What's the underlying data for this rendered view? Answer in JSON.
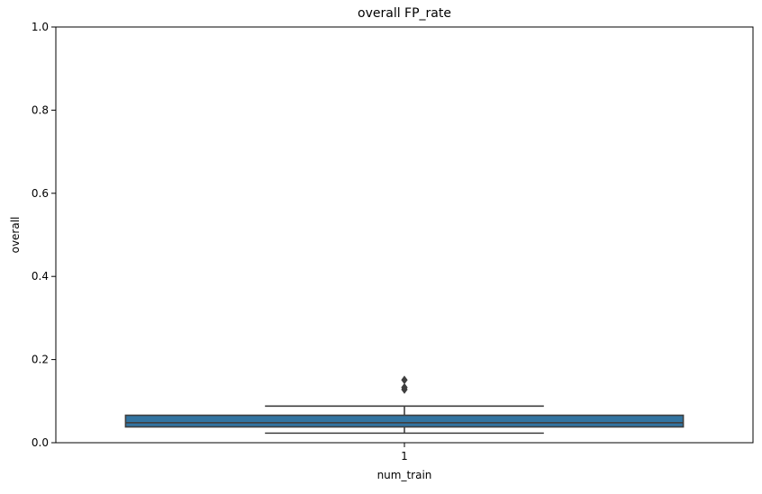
{
  "chart_data": {
    "type": "box",
    "title": "overall FP_rate",
    "xlabel": "num_train",
    "ylabel": "overall",
    "categories": [
      "1"
    ],
    "ylim": [
      0,
      1
    ],
    "yticks": [
      "0.0",
      "0.2",
      "0.4",
      "0.6",
      "0.8",
      "1.0"
    ],
    "ytick_values": [
      0.0,
      0.2,
      0.4,
      0.6,
      0.8,
      1.0
    ],
    "grid": false,
    "legend": "none",
    "boxes": [
      {
        "category": "1",
        "whisker_low": 0.023,
        "q1": 0.038,
        "median": 0.048,
        "q3": 0.066,
        "whisker_high": 0.088,
        "outliers": [
          0.128,
          0.133,
          0.151
        ]
      }
    ],
    "colors": {
      "box_fill": "#3274a1",
      "line": "#3f3f3f",
      "axis": "#000000"
    }
  }
}
